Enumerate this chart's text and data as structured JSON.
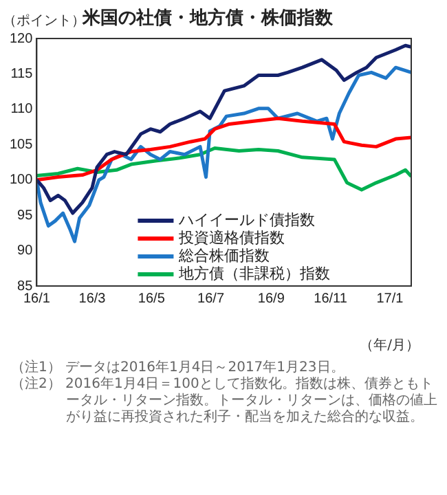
{
  "chart_data": {
    "type": "line",
    "title": "米国の社債・地方債・株価指数",
    "ylabel": "（ポイント）",
    "xlabel": "（年/月）",
    "xlim": [
      "2016-01-04",
      "2017-01-23"
    ],
    "xticks": [
      {
        "value": "2016-01-04",
        "label": "16/1"
      },
      {
        "value": "2016-03-01",
        "label": "16/3"
      },
      {
        "value": "2016-05-01",
        "label": "16/5"
      },
      {
        "value": "2016-07-01",
        "label": "16/7"
      },
      {
        "value": "2016-09-01",
        "label": "16/9"
      },
      {
        "value": "2016-11-01",
        "label": "16/11"
      },
      {
        "value": "2017-01-01",
        "label": "17/1"
      }
    ],
    "ylim": [
      85,
      120
    ],
    "yticks": [
      85,
      90,
      95,
      100,
      105,
      110,
      115,
      120
    ],
    "grid": false,
    "legend": "bottom",
    "marker": "none",
    "line_style": "solid",
    "series": [
      {
        "name": "ハイイールド債指数",
        "color": "#14216b",
        "x": [
          "2016-01-04",
          "2016-01-11",
          "2016-01-18",
          "2016-01-26",
          "2016-02-02",
          "2016-02-10",
          "2016-02-20",
          "2016-03-01",
          "2016-03-06",
          "2016-03-16",
          "2016-03-24",
          "2016-04-05",
          "2016-04-20",
          "2016-04-30",
          "2016-05-10",
          "2016-05-20",
          "2016-06-04",
          "2016-06-20",
          "2016-06-30",
          "2016-07-15",
          "2016-08-04",
          "2016-08-19",
          "2016-09-08",
          "2016-09-18",
          "2016-10-03",
          "2016-10-23",
          "2016-11-07",
          "2016-11-15",
          "2016-11-28",
          "2016-12-08",
          "2016-12-18",
          "2017-01-07",
          "2017-01-17",
          "2017-01-23"
        ],
        "values": [
          100,
          98.9,
          97.1,
          97.8,
          97.1,
          95.3,
          96.8,
          98.9,
          101.8,
          103.6,
          104,
          103.6,
          106.5,
          107.2,
          106.8,
          107.9,
          108.7,
          109.7,
          108.7,
          112.6,
          113.3,
          114.8,
          114.8,
          115.2,
          115.9,
          117,
          115.5,
          114.1,
          115.2,
          115.9,
          117.3,
          118.4,
          119,
          118.8
        ]
      },
      {
        "name": "投資適格債指数",
        "color": "#ff0000",
        "x": [
          "2016-01-04",
          "2016-01-26",
          "2016-02-20",
          "2016-03-06",
          "2016-03-21",
          "2016-04-10",
          "2016-04-30",
          "2016-05-20",
          "2016-06-10",
          "2016-06-25",
          "2016-07-05",
          "2016-07-20",
          "2016-08-14",
          "2016-09-08",
          "2016-10-03",
          "2016-11-05",
          "2016-11-15",
          "2016-12-03",
          "2016-12-18",
          "2017-01-07",
          "2017-01-23"
        ],
        "values": [
          100,
          100.4,
          100.7,
          101.4,
          102.9,
          104,
          104.3,
          104.7,
          105.4,
          105.8,
          107.2,
          107.9,
          108.3,
          108.7,
          108.3,
          107.9,
          105.4,
          104.9,
          104.7,
          105.8,
          106
        ]
      },
      {
        "name": "総合株価指数",
        "color": "#1f77c8",
        "x": [
          "2016-01-04",
          "2016-01-08",
          "2016-01-16",
          "2016-01-23",
          "2016-01-31",
          "2016-02-07",
          "2016-02-12",
          "2016-02-17",
          "2016-02-27",
          "2016-03-08",
          "2016-03-13",
          "2016-03-21",
          "2016-03-31",
          "2016-04-10",
          "2016-04-20",
          "2016-04-30",
          "2016-05-10",
          "2016-05-20",
          "2016-06-04",
          "2016-06-20",
          "2016-06-26",
          "2016-06-30",
          "2016-07-10",
          "2016-07-17",
          "2016-08-04",
          "2016-08-19",
          "2016-08-29",
          "2016-09-08",
          "2016-09-28",
          "2016-10-18",
          "2016-10-28",
          "2016-11-03",
          "2016-11-10",
          "2016-11-20",
          "2016-11-30",
          "2016-12-13",
          "2016-12-28",
          "2017-01-07",
          "2017-01-23"
        ],
        "values": [
          100,
          96.8,
          93.5,
          94.2,
          95.3,
          93.1,
          91.3,
          94.6,
          96.4,
          100,
          100.4,
          102.9,
          103.6,
          102.9,
          104.7,
          103.6,
          102.9,
          104,
          103.6,
          104.7,
          100.4,
          106.9,
          107.6,
          109,
          109.4,
          110.1,
          110.1,
          108.7,
          109.4,
          108.3,
          108.7,
          105.8,
          109.4,
          112.3,
          114.8,
          115.2,
          114.4,
          115.9,
          115.2
        ]
      },
      {
        "name": "地方債（非課税）指数",
        "color": "#00b050",
        "x": [
          "2016-01-04",
          "2016-01-26",
          "2016-02-15",
          "2016-03-06",
          "2016-03-26",
          "2016-04-10",
          "2016-05-05",
          "2016-05-30",
          "2016-06-20",
          "2016-07-05",
          "2016-07-30",
          "2016-08-19",
          "2016-09-08",
          "2016-10-03",
          "2016-11-05",
          "2016-11-18",
          "2016-12-03",
          "2016-12-18",
          "2017-01-07",
          "2017-01-17",
          "2017-01-23"
        ],
        "values": [
          100.6,
          100.9,
          101.6,
          101.1,
          101.4,
          102.2,
          102.7,
          103.1,
          103.6,
          104.5,
          104.1,
          104.3,
          104.1,
          103.2,
          102.9,
          99.6,
          98.6,
          99.6,
          100.7,
          101.4,
          100.5
        ]
      }
    ],
    "annotations": [
      "（注1） データは2016年1月4日～2017年1月23日。",
      "（注2） 2016年1月4日＝100として指数化。指数は株、債券ともトータル・リターン指数。トータル・リターンは、価格の値上がり益に再投資された利子・配当を加えた総合的な収益。"
    ]
  }
}
